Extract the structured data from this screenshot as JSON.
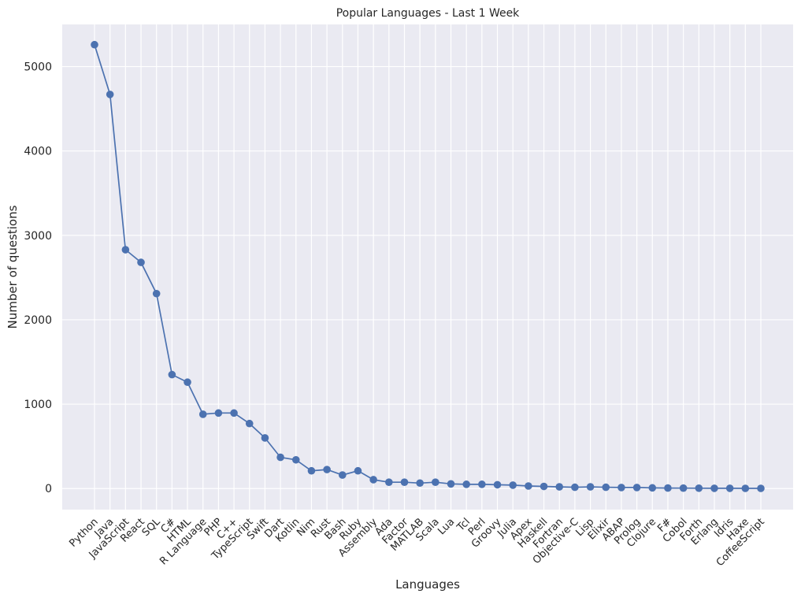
{
  "chart_data": {
    "type": "line",
    "title": "Popular Languages - Last 1 Week",
    "xlabel": "Languages",
    "ylabel": "Number of questions",
    "ylim": [
      -250,
      5500
    ],
    "yticks": [
      0,
      1000,
      2000,
      3000,
      4000,
      5000
    ],
    "grid": true,
    "marker": "circle",
    "categories": [
      "Python",
      "Java",
      "JavaScript",
      "React",
      "SQL",
      "C#",
      "HTML",
      "R Language",
      "PHP",
      "C++",
      "TypeScript",
      "Swift",
      "Dart",
      "Kotlin",
      "Nim",
      "Rust",
      "Bash",
      "Ruby",
      "Assembly",
      "Ada",
      "Factor",
      "MATLAB",
      "Scala",
      "Lua",
      "Tcl",
      "Perl",
      "Groovy",
      "Julia",
      "Apex",
      "Haskell",
      "Fortran",
      "Objective-C",
      "Lisp",
      "Elixir",
      "ABAP",
      "Prolog",
      "Clojure",
      "F#",
      "Cobol",
      "Forth",
      "Erlang",
      "Idris",
      "Haxe",
      "CoffeeScript"
    ],
    "series": [
      {
        "values": [
          5260,
          4670,
          2830,
          2680,
          2310,
          1350,
          1260,
          880,
          895,
          895,
          770,
          600,
          370,
          340,
          210,
          225,
          160,
          210,
          105,
          75,
          75,
          65,
          75,
          55,
          50,
          50,
          45,
          40,
          30,
          25,
          20,
          15,
          20,
          15,
          12,
          12,
          8,
          6,
          5,
          4,
          3,
          3,
          2,
          2
        ]
      }
    ],
    "colors": {
      "line": "#4c72b0",
      "plot_background": "#eaeaf2",
      "grid": "#ffffff",
      "text": "#262626"
    }
  }
}
